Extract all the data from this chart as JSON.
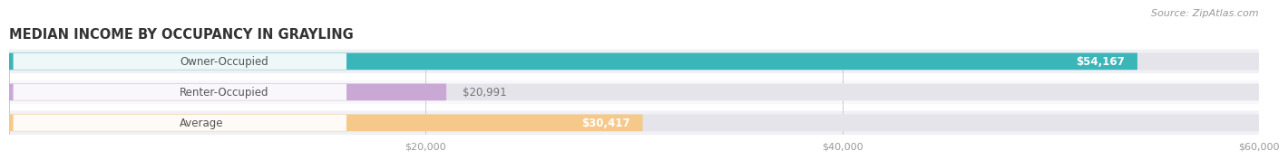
{
  "title": "MEDIAN INCOME BY OCCUPANCY IN GRAYLING",
  "source": "Source: ZipAtlas.com",
  "categories": [
    "Owner-Occupied",
    "Renter-Occupied",
    "Average"
  ],
  "values": [
    54167,
    20991,
    30417
  ],
  "labels": [
    "$54,167",
    "$20,991",
    "$30,417"
  ],
  "bar_colors": [
    "#3ab5b8",
    "#c9a8d5",
    "#f5c98a"
  ],
  "bar_bg_color": "#e4e4ea",
  "xlim": [
    0,
    60000
  ],
  "xticks": [
    0,
    20000,
    40000,
    60000
  ],
  "xtick_labels": [
    "$20,000",
    "$40,000",
    "$60,000"
  ],
  "background_color": "#ffffff",
  "row_bg_colors": [
    "#f0f0f5",
    "#f8f8fb",
    "#f0f0f5"
  ],
  "title_fontsize": 10.5,
  "label_fontsize": 8.5,
  "source_fontsize": 8,
  "bar_height": 0.55,
  "label_color_inside": "#ffffff",
  "label_color_outside": "#777777",
  "category_fontsize": 8.5
}
